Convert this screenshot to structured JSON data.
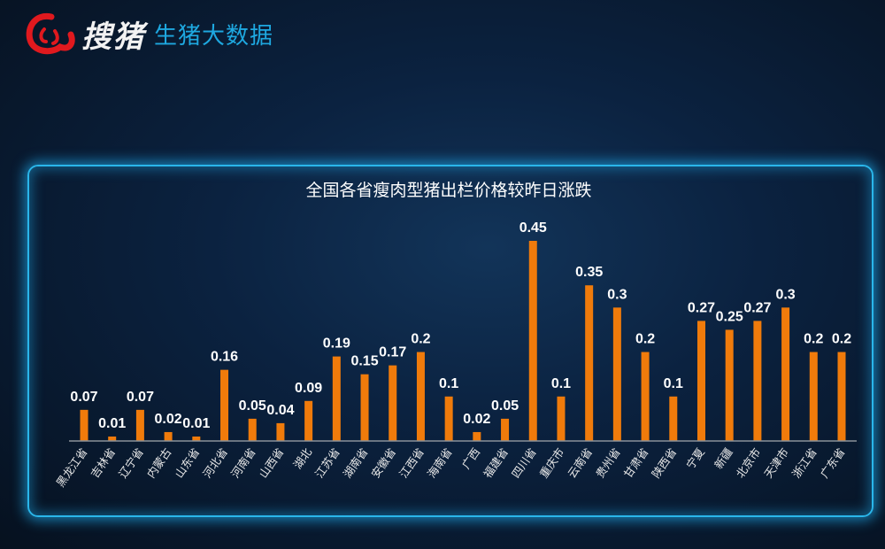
{
  "logo": {
    "brand": "搜猪",
    "subtitle": "生猪大数据"
  },
  "colors": {
    "bar": "#f07b0b",
    "panel_border": "#2ab6ea",
    "subtitle": "#1ea8e0",
    "axis": "#8a9199"
  },
  "chart_data": {
    "type": "bar",
    "title": "全国各省瘦肉型猪出栏价格较昨日涨跌",
    "categories": [
      "黑龙江省",
      "吉林省",
      "辽宁省",
      "内蒙古",
      "山东省",
      "河北省",
      "河南省",
      "山西省",
      "湖北",
      "江苏省",
      "湖南省",
      "安徽省",
      "江西省",
      "海南省",
      "广西",
      "福建省",
      "四川省",
      "重庆市",
      "云南省",
      "贵州省",
      "甘肃省",
      "陕西省",
      "宁夏",
      "新疆",
      "北京市",
      "天津市",
      "浙江省",
      "广东省"
    ],
    "values": [
      0.07,
      0.01,
      0.07,
      0.02,
      0.01,
      0.16,
      0.05,
      0.04,
      0.09,
      0.19,
      0.15,
      0.17,
      0.2,
      0.1,
      0.02,
      0.05,
      0.45,
      0.1,
      0.35,
      0.3,
      0.2,
      0.1,
      0.27,
      0.25,
      0.27,
      0.3,
      0.2,
      0.2
    ],
    "ylim": [
      0,
      0.5
    ],
    "grid": false,
    "data_labels": true,
    "legend": "none"
  }
}
